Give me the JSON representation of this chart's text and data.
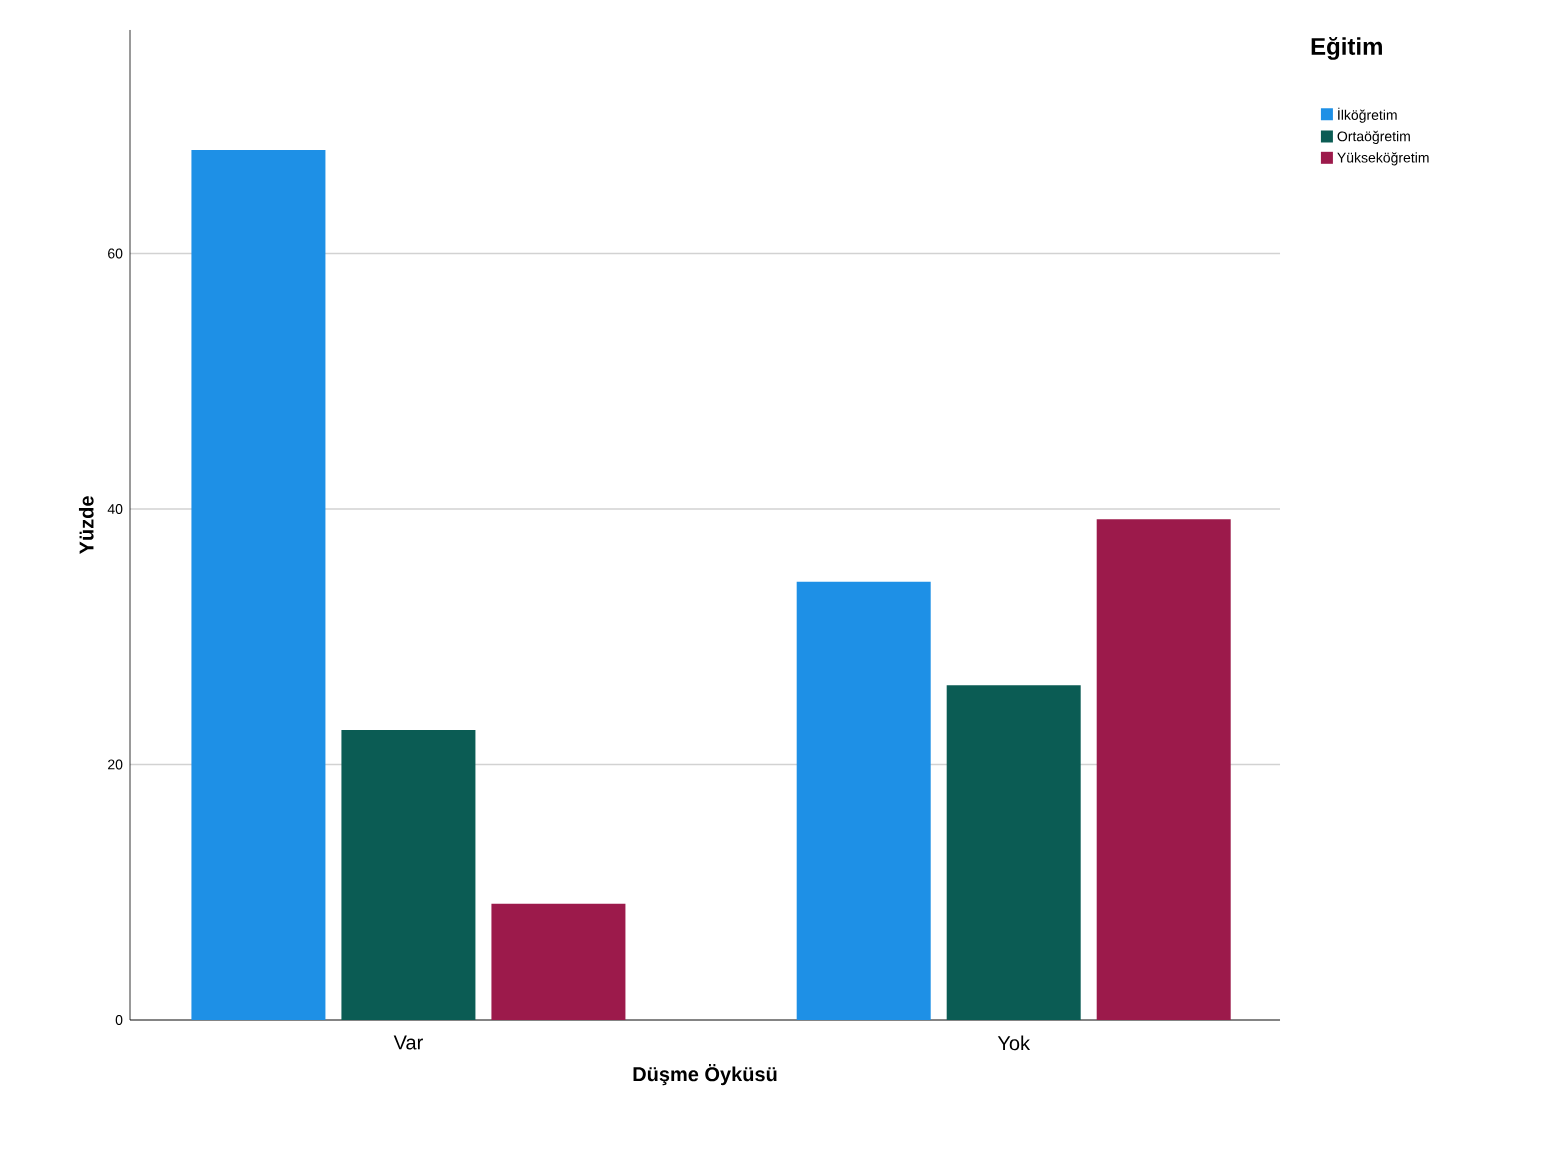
{
  "chart_data": {
    "type": "bar",
    "xlabel": "Düşme Öyküsü",
    "ylabel": "Yüzde",
    "legend_title": "Eğitim",
    "categories": [
      "Var",
      "Yok"
    ],
    "series": [
      {
        "name": "İlköğretim",
        "color": "#1e90e6",
        "values": [
          68.1,
          34.3
        ]
      },
      {
        "name": "Ortaöğretim",
        "color": "#0b5c54",
        "values": [
          22.7,
          26.2
        ]
      },
      {
        "name": "Yükseköğretim",
        "color": "#9c1a4b",
        "values": [
          9.1,
          39.2
        ]
      }
    ],
    "ylim": [
      0,
      77.5
    ],
    "yticks": [
      0,
      20,
      40,
      60
    ],
    "grid": "y",
    "legend": "top right"
  }
}
